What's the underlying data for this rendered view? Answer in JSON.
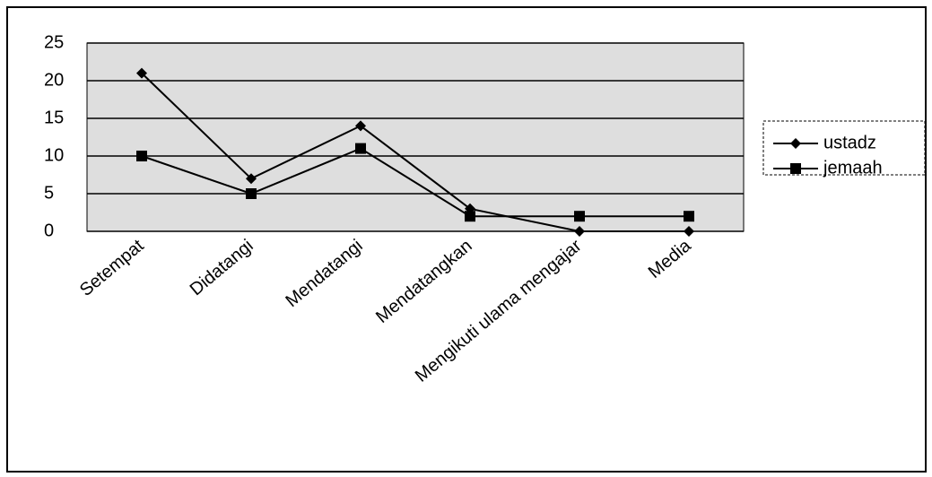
{
  "chart_data": {
    "type": "line",
    "categories": [
      "Setempat",
      "Didatangi",
      "Mendatangi",
      "Mendatangkan",
      "Mengikuti ulama mengajar",
      "Media"
    ],
    "series": [
      {
        "name": "ustadz",
        "color": "#000000",
        "marker": "diamond",
        "values": [
          21,
          7,
          14,
          3,
          0,
          0
        ]
      },
      {
        "name": "jemaah",
        "color": "#000000",
        "marker": "square",
        "values": [
          10,
          5,
          11,
          2,
          2,
          2
        ]
      }
    ],
    "ylim": [
      0,
      25
    ],
    "yticks": [
      0,
      5,
      10,
      15,
      20,
      25
    ],
    "grid": true,
    "legend": "right"
  }
}
